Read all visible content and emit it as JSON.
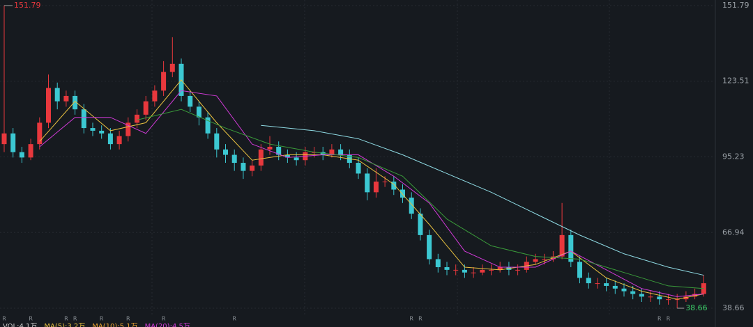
{
  "chart_data": {
    "type": "candlestick",
    "candles": {
      "open": [
        100,
        104,
        97,
        95,
        100,
        108,
        121,
        116,
        118,
        113,
        106,
        105,
        104,
        100,
        103,
        108,
        111,
        116,
        120,
        127,
        130,
        118,
        114,
        110,
        104,
        98,
        96,
        93,
        90,
        92,
        98,
        99,
        96,
        95,
        94,
        97,
        97,
        96,
        98,
        96,
        93,
        89,
        82,
        86,
        86,
        83,
        80,
        74,
        66,
        57,
        54,
        53,
        53,
        52,
        52,
        53,
        53,
        54,
        53,
        53,
        56,
        57,
        57,
        58,
        66,
        56,
        50,
        48,
        48,
        47,
        46,
        45,
        44,
        43,
        43,
        42,
        42,
        42,
        43,
        44
      ],
      "high": [
        151.79,
        106,
        99,
        102,
        110,
        126,
        123,
        120,
        120,
        115,
        108,
        107,
        106,
        105,
        110,
        113,
        118,
        122,
        131,
        140,
        132,
        120,
        116,
        112,
        106,
        100,
        98,
        95,
        94,
        100,
        103,
        101,
        98,
        97,
        99,
        99,
        99,
        100,
        100,
        98,
        95,
        91,
        91,
        88,
        88,
        85,
        82,
        76,
        68,
        59,
        56,
        55,
        55,
        54,
        55,
        55,
        56,
        56,
        55,
        58,
        59,
        59,
        60,
        78,
        68,
        58,
        52,
        50,
        50,
        49,
        48,
        47,
        46,
        45,
        45,
        44,
        44,
        45,
        46,
        51
      ],
      "low": [
        97,
        95,
        93,
        94,
        98,
        106,
        113,
        114,
        111,
        104,
        103,
        102,
        98,
        98,
        101,
        106,
        109,
        114,
        118,
        125,
        116,
        112,
        107,
        102,
        95,
        93,
        90,
        87,
        88,
        90,
        96,
        94,
        93,
        92,
        92,
        95,
        94,
        95,
        94,
        91,
        87,
        79,
        80,
        84,
        81,
        78,
        72,
        64,
        55,
        52,
        51,
        51,
        50,
        50,
        51,
        51,
        52,
        51,
        51,
        52,
        55,
        55,
        56,
        57,
        54,
        48,
        46,
        46,
        45,
        44,
        43,
        42,
        41,
        41,
        40,
        40,
        38.66,
        41,
        42,
        43
      ],
      "close": [
        104,
        97,
        95,
        100,
        108,
        121,
        116,
        118,
        113,
        106,
        105,
        104,
        100,
        103,
        108,
        111,
        116,
        120,
        127,
        130,
        118,
        114,
        110,
        104,
        98,
        96,
        93,
        90,
        92,
        98,
        99,
        96,
        95,
        94,
        97,
        97,
        96,
        98,
        96,
        93,
        89,
        82,
        86,
        86,
        83,
        80,
        74,
        66,
        57,
        54,
        53,
        53,
        52,
        52,
        53,
        53,
        54,
        53,
        53,
        56,
        57,
        57,
        58,
        66,
        56,
        50,
        48,
        48,
        47,
        46,
        45,
        44,
        43,
        43,
        42,
        42,
        42,
        43,
        44,
        48
      ]
    },
    "up_color": "#e8383d",
    "down_color": "#3cc8d2",
    "lines": [
      {
        "color": "#e8c040",
        "x": [
          4,
          8,
          12,
          16,
          20,
          24,
          28,
          32,
          36,
          40,
          44,
          48,
          52,
          56,
          60,
          64,
          68,
          72,
          76,
          79
        ],
        "values": [
          101,
          116,
          105,
          108,
          124,
          108,
          94,
          96,
          96,
          94,
          85,
          70,
          54,
          53,
          55,
          60,
          50,
          45,
          42,
          44
        ]
      },
      {
        "color": "#d23ad8",
        "x": [
          4,
          8,
          12,
          16,
          20,
          24,
          28,
          32,
          36,
          40,
          44,
          48,
          52,
          56,
          60,
          64,
          68,
          72,
          76,
          79
        ],
        "values": [
          99,
          110,
          110,
          104,
          120,
          118,
          100,
          95,
          96,
          96,
          88,
          78,
          60,
          54,
          54,
          60,
          53,
          46,
          43,
          44
        ]
      },
      {
        "color": "#3a9a3a",
        "x": [
          15,
          20,
          25,
          30,
          35,
          40,
          45,
          50,
          55,
          60,
          65,
          70,
          75,
          79
        ],
        "values": [
          109,
          113,
          106,
          100,
          97,
          95,
          88,
          72,
          62,
          58,
          57,
          52,
          47,
          46
        ]
      },
      {
        "color": "#8fdbe4",
        "x": [
          29,
          35,
          40,
          45,
          50,
          55,
          60,
          65,
          70,
          75,
          79
        ],
        "values": [
          107,
          105,
          102,
          96,
          89,
          82,
          74,
          66,
          59,
          54,
          51
        ]
      }
    ],
    "ylim": [
      38.66,
      151.79
    ],
    "yticks": [
      38.66,
      66.94,
      95.23,
      123.51,
      151.79
    ],
    "grid": true,
    "events": [
      {
        "index": 0,
        "label": "R"
      },
      {
        "index": 3,
        "label": "R"
      },
      {
        "index": 7,
        "label": "R"
      },
      {
        "index": 8,
        "label": "R"
      },
      {
        "index": 11,
        "label": "R"
      },
      {
        "index": 14,
        "label": "R"
      },
      {
        "index": 18,
        "label": "R"
      },
      {
        "index": 26,
        "label": "R"
      },
      {
        "index": 46,
        "label": "R"
      },
      {
        "index": 47,
        "label": "R"
      },
      {
        "index": 74,
        "label": "R"
      },
      {
        "index": 75,
        "label": "R"
      }
    ],
    "volume_legend": [
      {
        "text": "VOL:4.1万",
        "color": "#cccccc"
      },
      {
        "text": "MA(5):3.2万",
        "color": "#e8c040"
      },
      {
        "text": "MA(10):5.1万",
        "color": "#e8a030"
      },
      {
        "text": "MA(20):4.5万",
        "color": "#d23ad8"
      }
    ]
  }
}
